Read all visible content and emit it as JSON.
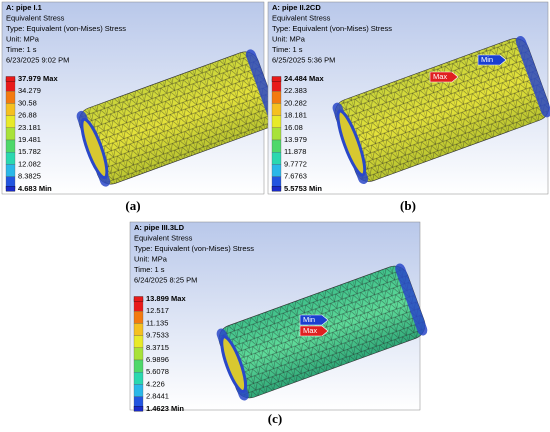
{
  "panels": [
    {
      "label": "(a)",
      "header": [
        "A: pipe I.1",
        "Equivalent Stress",
        "Type: Equivalent (von-Mises) Stress",
        "Unit: MPa",
        "Time: 1 s",
        "6/23/2025 9:02 PM"
      ],
      "legend": [
        "37.979 Max",
        "34.279",
        "30.58",
        "26.88",
        "23.181",
        "19.481",
        "15.782",
        "12.082",
        "8.3825",
        "4.683 Min"
      ]
    },
    {
      "label": "(b)",
      "header": [
        "A: pipe II.2CD",
        "Equivalent Stress",
        "Type: Equivalent (von-Mises) Stress",
        "Unit: MPa",
        "Time: 1 s",
        "6/25/2025 5:36 PM"
      ],
      "legend": [
        "24.484 Max",
        "22.383",
        "20.282",
        "18.181",
        "16.08",
        "13.979",
        "11.878",
        "9.7772",
        "7.6763",
        "5.5753 Min"
      ],
      "markers": [
        "Max",
        "Min"
      ]
    },
    {
      "label": "(c)",
      "header": [
        "A: pipe III.3LD",
        "Equivalent Stress",
        "Type: Equivalent (von-Mises) Stress",
        "Unit: MPa",
        "Time: 1 s",
        "6/24/2025 8:25 PM"
      ],
      "legend": [
        "13.899 Max",
        "12.517",
        "11.135",
        "9.7533",
        "8.3715",
        "6.9896",
        "5.6078",
        "4.226",
        "2.8441",
        "1.4623 Min"
      ],
      "markers": [
        "Min",
        "Max"
      ]
    }
  ]
}
